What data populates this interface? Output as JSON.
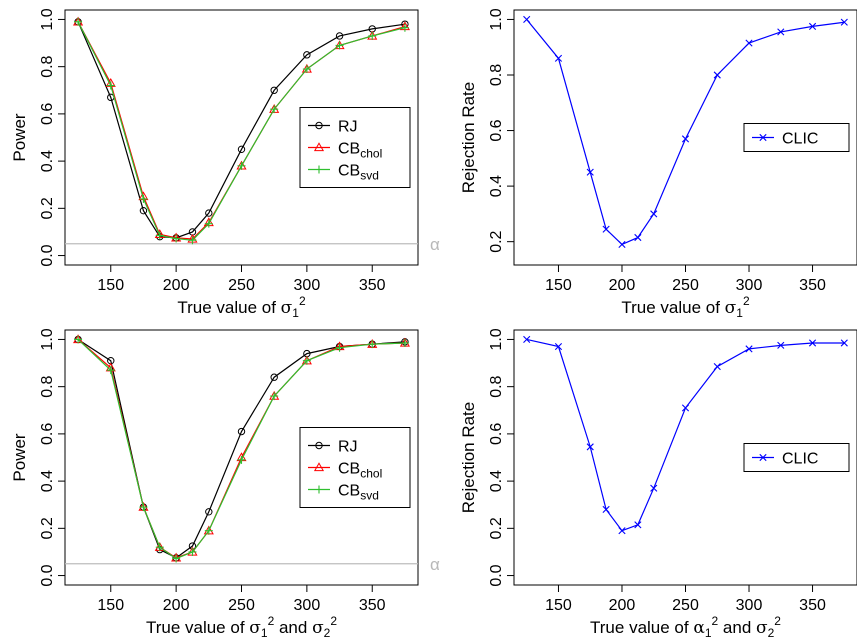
{
  "colors": {
    "rj": "#000000",
    "cb_chol": "#ff0000",
    "cb_svd": "#2fbf2f",
    "clic": "#0000ff",
    "alpha_line": "#bdbdbd"
  },
  "alpha_symbol": "α",
  "chart_data": [
    {
      "type": "line",
      "panel": "top-left",
      "x_title": {
        "prefix": "True value of ",
        "sym1": "σ",
        "sub1": "1",
        "sup1": "2",
        "mid": "",
        "sym2": "",
        "sub2": "",
        "sup2": ""
      },
      "ylabel": "Power",
      "xticks": [
        150,
        200,
        250,
        300,
        350
      ],
      "yticks": [
        "0.0",
        "0.2",
        "0.4",
        "0.6",
        "0.8",
        "1.0"
      ],
      "xlim": [
        125,
        375
      ],
      "ylim": [
        0,
        1
      ],
      "alpha_value": 0.05,
      "legend_position": "center-right",
      "legend": [
        {
          "key": "rj",
          "label": "RJ",
          "sub": "",
          "marker": "circle"
        },
        {
          "key": "cb_chol",
          "label": "CB",
          "sub": "chol",
          "marker": "triangle"
        },
        {
          "key": "cb_svd",
          "label": "CB",
          "sub": "svd",
          "marker": "plus"
        }
      ],
      "x": [
        125,
        150,
        175,
        187.5,
        200,
        212.5,
        225,
        250,
        275,
        300,
        325,
        350,
        375
      ],
      "series": [
        {
          "key": "rj",
          "marker": "circle",
          "values": [
            0.99,
            0.67,
            0.19,
            0.08,
            0.075,
            0.1,
            0.18,
            0.45,
            0.7,
            0.85,
            0.93,
            0.96,
            0.98
          ]
        },
        {
          "key": "cb_chol",
          "marker": "triangle",
          "values": [
            0.99,
            0.73,
            0.25,
            0.09,
            0.075,
            0.07,
            0.14,
            0.38,
            0.62,
            0.79,
            0.89,
            0.93,
            0.97
          ]
        },
        {
          "key": "cb_svd",
          "marker": "plus",
          "values": [
            0.99,
            0.72,
            0.24,
            0.085,
            0.072,
            0.065,
            0.135,
            0.38,
            0.62,
            0.79,
            0.89,
            0.93,
            0.965
          ]
        }
      ]
    },
    {
      "type": "line",
      "panel": "top-right",
      "x_title": {
        "prefix": "True value of ",
        "sym1": "σ",
        "sub1": "1",
        "sup1": "2",
        "mid": "",
        "sym2": "",
        "sub2": "",
        "sup2": ""
      },
      "ylabel": "Rejection Rate",
      "xticks": [
        150,
        200,
        250,
        300,
        350
      ],
      "yticks": [
        "0.2",
        "0.4",
        "0.6",
        "0.8",
        "1.0"
      ],
      "xlim": [
        125,
        375
      ],
      "ylim": [
        0.15,
        1
      ],
      "legend_position": "center-right",
      "legend": [
        {
          "key": "clic",
          "label": "CLIC",
          "sub": "",
          "marker": "x"
        }
      ],
      "x": [
        125,
        150,
        175,
        187.5,
        200,
        212.5,
        225,
        250,
        275,
        300,
        325,
        350,
        375
      ],
      "series": [
        {
          "key": "clic",
          "marker": "x",
          "values": [
            1.0,
            0.86,
            0.45,
            0.245,
            0.19,
            0.215,
            0.3,
            0.57,
            0.8,
            0.915,
            0.955,
            0.975,
            0.99
          ]
        }
      ]
    },
    {
      "type": "line",
      "panel": "bottom-left",
      "x_title": {
        "prefix": "True value of ",
        "sym1": "σ",
        "sub1": "1",
        "sup1": "2",
        "mid": " and ",
        "sym2": "σ",
        "sub2": "2",
        "sup2": "2"
      },
      "ylabel": "Power",
      "xticks": [
        150,
        200,
        250,
        300,
        350
      ],
      "yticks": [
        "0.0",
        "0.2",
        "0.4",
        "0.6",
        "0.8",
        "1.0"
      ],
      "xlim": [
        125,
        375
      ],
      "ylim": [
        0,
        1
      ],
      "alpha_value": 0.05,
      "legend_position": "center-right",
      "legend": [
        {
          "key": "rj",
          "label": "RJ",
          "sub": "",
          "marker": "circle"
        },
        {
          "key": "cb_chol",
          "label": "CB",
          "sub": "chol",
          "marker": "triangle"
        },
        {
          "key": "cb_svd",
          "label": "CB",
          "sub": "svd",
          "marker": "plus"
        }
      ],
      "x": [
        125,
        150,
        175,
        187.5,
        200,
        212.5,
        225,
        250,
        275,
        300,
        325,
        350,
        375
      ],
      "series": [
        {
          "key": "rj",
          "marker": "circle",
          "values": [
            1.0,
            0.91,
            0.29,
            0.11,
            0.075,
            0.125,
            0.27,
            0.61,
            0.84,
            0.94,
            0.97,
            0.98,
            0.99
          ]
        },
        {
          "key": "cb_chol",
          "marker": "triangle",
          "values": [
            1.0,
            0.88,
            0.29,
            0.12,
            0.075,
            0.1,
            0.19,
            0.5,
            0.76,
            0.91,
            0.97,
            0.98,
            0.985
          ]
        },
        {
          "key": "cb_svd",
          "marker": "plus",
          "values": [
            1.0,
            0.87,
            0.29,
            0.12,
            0.072,
            0.1,
            0.19,
            0.49,
            0.76,
            0.91,
            0.965,
            0.98,
            0.985
          ]
        }
      ]
    },
    {
      "type": "line",
      "panel": "bottom-right",
      "x_title": {
        "prefix": "True value of ",
        "sym1": "α",
        "sub1": "1",
        "sup1": "2",
        "mid": " and ",
        "sym2": "σ",
        "sub2": "2",
        "sup2": "2"
      },
      "ylabel": "Rejection Rate",
      "xticks": [
        150,
        200,
        250,
        300,
        350
      ],
      "yticks": [
        "0.0",
        "0.2",
        "0.4",
        "0.6",
        "0.8",
        "1.0"
      ],
      "xlim": [
        125,
        375
      ],
      "ylim": [
        0,
        1
      ],
      "legend_position": "center-right",
      "legend": [
        {
          "key": "clic",
          "label": "CLIC",
          "sub": "",
          "marker": "x"
        }
      ],
      "x": [
        125,
        150,
        175,
        187.5,
        200,
        212.5,
        225,
        250,
        275,
        300,
        325,
        350,
        375
      ],
      "series": [
        {
          "key": "clic",
          "marker": "x",
          "values": [
            1.0,
            0.97,
            0.545,
            0.28,
            0.19,
            0.215,
            0.37,
            0.71,
            0.885,
            0.96,
            0.975,
            0.985,
            0.985
          ]
        }
      ]
    }
  ]
}
